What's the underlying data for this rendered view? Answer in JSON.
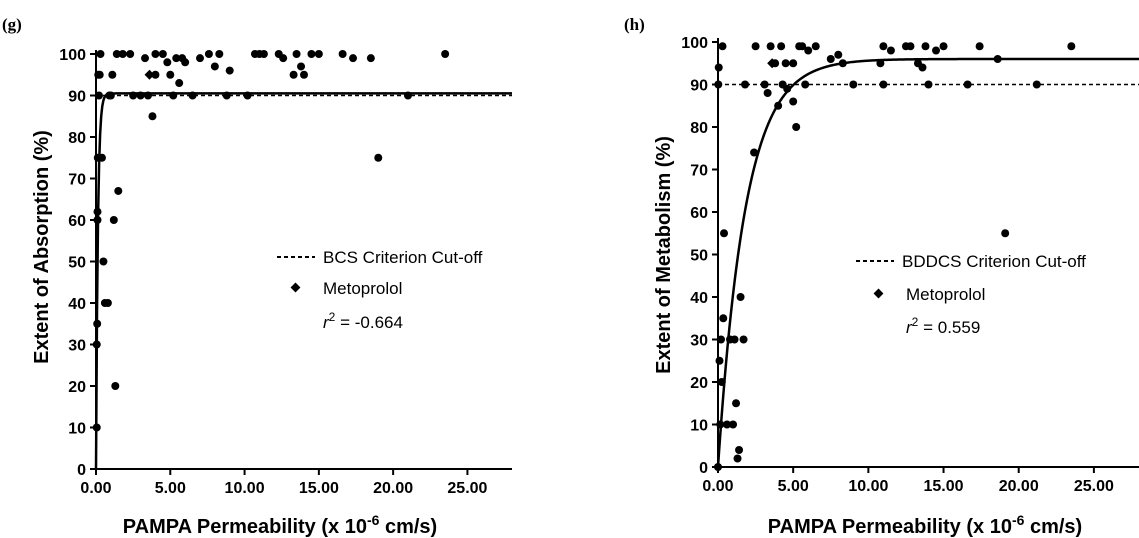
{
  "chart_data": [
    {
      "type": "scatter",
      "panel_label": "(g)",
      "xlabel": {
        "main": "PAMPA Permeability (x 10",
        "sup": "-6",
        "tail": " cm/s)"
      },
      "ylabel": "Extent of Absorption (%)",
      "xlim": [
        0,
        28
      ],
      "ylim": [
        0,
        100
      ],
      "xticks": [
        0,
        5,
        10,
        15,
        20,
        25
      ],
      "xtick_labels": [
        "0.00",
        "5.00",
        "10.00",
        "15.00",
        "20.00",
        "25.00"
      ],
      "yticks": [
        0,
        10,
        20,
        30,
        40,
        50,
        60,
        70,
        80,
        90,
        100
      ],
      "ytick_labels": [
        "0",
        "10",
        "20",
        "30",
        "40",
        "50",
        "60",
        "70",
        "80",
        "90",
        "100"
      ],
      "cutoff": 90,
      "fit": {
        "type": "exponential-plateau",
        "plateau": 90.5,
        "k": 8
      },
      "metoprolol": {
        "x": 3.6,
        "y": 95
      },
      "legend": {
        "cutoff_label": "BCS Criterion Cut-off",
        "marker_label": "Metoprolol",
        "r2_label": "r",
        "r2_sup": "2",
        "r2_value": " = -0.664"
      },
      "points": [
        {
          "x": 0.05,
          "y": 10
        },
        {
          "x": 0.05,
          "y": 30
        },
        {
          "x": 0.08,
          "y": 35
        },
        {
          "x": 0.1,
          "y": 60
        },
        {
          "x": 0.1,
          "y": 62
        },
        {
          "x": 0.12,
          "y": 75
        },
        {
          "x": 0.15,
          "y": 95
        },
        {
          "x": 0.2,
          "y": 90
        },
        {
          "x": 0.25,
          "y": 95
        },
        {
          "x": 0.3,
          "y": 100
        },
        {
          "x": 0.4,
          "y": 75
        },
        {
          "x": 0.5,
          "y": 50
        },
        {
          "x": 0.6,
          "y": 40
        },
        {
          "x": 0.8,
          "y": 40
        },
        {
          "x": 0.9,
          "y": 90
        },
        {
          "x": 1.0,
          "y": 90
        },
        {
          "x": 1.1,
          "y": 95
        },
        {
          "x": 1.2,
          "y": 60
        },
        {
          "x": 1.3,
          "y": 20
        },
        {
          "x": 1.4,
          "y": 100
        },
        {
          "x": 1.5,
          "y": 67
        },
        {
          "x": 1.8,
          "y": 100
        },
        {
          "x": 2.3,
          "y": 100
        },
        {
          "x": 2.5,
          "y": 90
        },
        {
          "x": 3.0,
          "y": 90
        },
        {
          "x": 3.3,
          "y": 99
        },
        {
          "x": 3.5,
          "y": 90
        },
        {
          "x": 3.8,
          "y": 85
        },
        {
          "x": 4.0,
          "y": 95
        },
        {
          "x": 4.0,
          "y": 100
        },
        {
          "x": 4.5,
          "y": 100
        },
        {
          "x": 4.8,
          "y": 98
        },
        {
          "x": 5.0,
          "y": 95
        },
        {
          "x": 5.2,
          "y": 90
        },
        {
          "x": 5.4,
          "y": 99
        },
        {
          "x": 5.6,
          "y": 93
        },
        {
          "x": 5.8,
          "y": 99
        },
        {
          "x": 6.0,
          "y": 98
        },
        {
          "x": 6.5,
          "y": 90
        },
        {
          "x": 7.0,
          "y": 99
        },
        {
          "x": 7.6,
          "y": 100
        },
        {
          "x": 8.0,
          "y": 97
        },
        {
          "x": 8.3,
          "y": 100
        },
        {
          "x": 8.8,
          "y": 90
        },
        {
          "x": 9.0,
          "y": 96
        },
        {
          "x": 10.2,
          "y": 90
        },
        {
          "x": 10.7,
          "y": 100
        },
        {
          "x": 11.0,
          "y": 100
        },
        {
          "x": 11.3,
          "y": 100
        },
        {
          "x": 12.3,
          "y": 100
        },
        {
          "x": 12.6,
          "y": 99
        },
        {
          "x": 13.3,
          "y": 95
        },
        {
          "x": 13.5,
          "y": 100
        },
        {
          "x": 13.8,
          "y": 97
        },
        {
          "x": 14.0,
          "y": 95
        },
        {
          "x": 14.5,
          "y": 100
        },
        {
          "x": 15.0,
          "y": 100
        },
        {
          "x": 16.6,
          "y": 100
        },
        {
          "x": 17.3,
          "y": 99
        },
        {
          "x": 18.5,
          "y": 99
        },
        {
          "x": 19.0,
          "y": 75
        },
        {
          "x": 21.0,
          "y": 90
        },
        {
          "x": 23.5,
          "y": 100
        }
      ]
    },
    {
      "type": "scatter",
      "panel_label": "(h)",
      "xlabel": {
        "main": "PAMPA Permeability (x 10",
        "sup": "-6",
        "tail": " cm/s)"
      },
      "ylabel": "Extent of Metabolism (%)",
      "xlim": [
        0,
        28
      ],
      "ylim": [
        0,
        100
      ],
      "xticks": [
        0,
        5,
        10,
        15,
        20,
        25
      ],
      "xtick_labels": [
        "0.00",
        "5.00",
        "10.00",
        "15.00",
        "20.00",
        "25.00"
      ],
      "yticks": [
        0,
        10,
        20,
        30,
        40,
        50,
        60,
        70,
        80,
        90,
        100
      ],
      "ytick_labels": [
        "0",
        "10",
        "20",
        "30",
        "40",
        "50",
        "60",
        "70",
        "80",
        "90",
        "100"
      ],
      "cutoff": 90,
      "fit": {
        "type": "exponential-plateau",
        "plateau": 96,
        "k": 0.55
      },
      "metoprolol": {
        "x": 3.6,
        "y": 95
      },
      "legend": {
        "cutoff_label": "BDDCS Criterion Cut-off",
        "marker_label": "Metoprolol",
        "r2_label": "r",
        "r2_sup": "2",
        "r2_value": " = 0.559"
      },
      "points": [
        {
          "x": 0.0,
          "y": 0
        },
        {
          "x": 0.02,
          "y": 90
        },
        {
          "x": 0.05,
          "y": 94
        },
        {
          "x": 0.1,
          "y": 25
        },
        {
          "x": 0.15,
          "y": 10
        },
        {
          "x": 0.2,
          "y": 30
        },
        {
          "x": 0.25,
          "y": 20
        },
        {
          "x": 0.3,
          "y": 99
        },
        {
          "x": 0.35,
          "y": 35
        },
        {
          "x": 0.4,
          "y": 55
        },
        {
          "x": 0.6,
          "y": 10
        },
        {
          "x": 0.8,
          "y": 30
        },
        {
          "x": 1.0,
          "y": 10
        },
        {
          "x": 1.1,
          "y": 30
        },
        {
          "x": 1.2,
          "y": 15
        },
        {
          "x": 1.3,
          "y": 2
        },
        {
          "x": 1.4,
          "y": 4
        },
        {
          "x": 1.5,
          "y": 40
        },
        {
          "x": 1.7,
          "y": 30
        },
        {
          "x": 1.8,
          "y": 90
        },
        {
          "x": 2.4,
          "y": 74
        },
        {
          "x": 2.5,
          "y": 99
        },
        {
          "x": 3.1,
          "y": 90
        },
        {
          "x": 3.3,
          "y": 88
        },
        {
          "x": 3.5,
          "y": 99
        },
        {
          "x": 3.8,
          "y": 95
        },
        {
          "x": 4.0,
          "y": 85
        },
        {
          "x": 4.2,
          "y": 99
        },
        {
          "x": 4.3,
          "y": 90
        },
        {
          "x": 4.5,
          "y": 95
        },
        {
          "x": 4.6,
          "y": 89
        },
        {
          "x": 5.0,
          "y": 86
        },
        {
          "x": 5.0,
          "y": 95
        },
        {
          "x": 5.2,
          "y": 80
        },
        {
          "x": 5.4,
          "y": 99
        },
        {
          "x": 5.6,
          "y": 99
        },
        {
          "x": 5.8,
          "y": 90
        },
        {
          "x": 6.0,
          "y": 98
        },
        {
          "x": 6.5,
          "y": 99
        },
        {
          "x": 7.5,
          "y": 96
        },
        {
          "x": 8.0,
          "y": 97
        },
        {
          "x": 8.3,
          "y": 95
        },
        {
          "x": 9.0,
          "y": 90
        },
        {
          "x": 10.8,
          "y": 95
        },
        {
          "x": 11.0,
          "y": 99
        },
        {
          "x": 11.0,
          "y": 90
        },
        {
          "x": 11.5,
          "y": 98
        },
        {
          "x": 12.5,
          "y": 99
        },
        {
          "x": 12.8,
          "y": 99
        },
        {
          "x": 13.3,
          "y": 95
        },
        {
          "x": 13.6,
          "y": 94
        },
        {
          "x": 13.8,
          "y": 99
        },
        {
          "x": 14.0,
          "y": 90
        },
        {
          "x": 14.5,
          "y": 98
        },
        {
          "x": 15.0,
          "y": 99
        },
        {
          "x": 16.6,
          "y": 90
        },
        {
          "x": 17.4,
          "y": 99
        },
        {
          "x": 18.6,
          "y": 96
        },
        {
          "x": 19.1,
          "y": 55
        },
        {
          "x": 21.2,
          "y": 90
        },
        {
          "x": 23.5,
          "y": 99
        }
      ]
    }
  ]
}
